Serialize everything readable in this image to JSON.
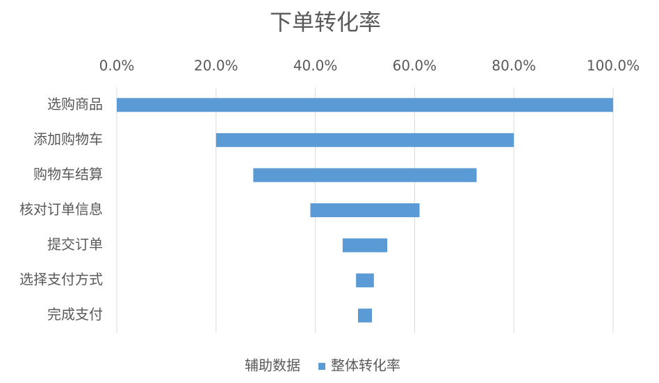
{
  "chart_data": {
    "type": "stacked-bar-horizontal",
    "title": "下单转化率",
    "categories": [
      "选购商品",
      "添加购物车",
      "购物车结算",
      "核对订单信息",
      "提交订单",
      "选择支付方式",
      "完成支付"
    ],
    "series": [
      {
        "name": "辅助数据",
        "color": "none",
        "values": [
          0,
          20,
          27.5,
          39,
          45.5,
          48.2,
          48.6
        ]
      },
      {
        "name": "整体转化率",
        "color": "#5b9bd5",
        "values": [
          100,
          60,
          45,
          22,
          9,
          3.6,
          2.8
        ]
      }
    ],
    "xlim": [
      0,
      100
    ],
    "xticks": [
      {
        "value": 0,
        "label": "0.0%"
      },
      {
        "value": 20,
        "label": "20.0%"
      },
      {
        "value": 40,
        "label": "40.0%"
      },
      {
        "value": 60,
        "label": "60.0%"
      },
      {
        "value": 80,
        "label": "80.0%"
      },
      {
        "value": 100,
        "label": "100.0%"
      }
    ],
    "grid": true,
    "legend": "bottom"
  }
}
